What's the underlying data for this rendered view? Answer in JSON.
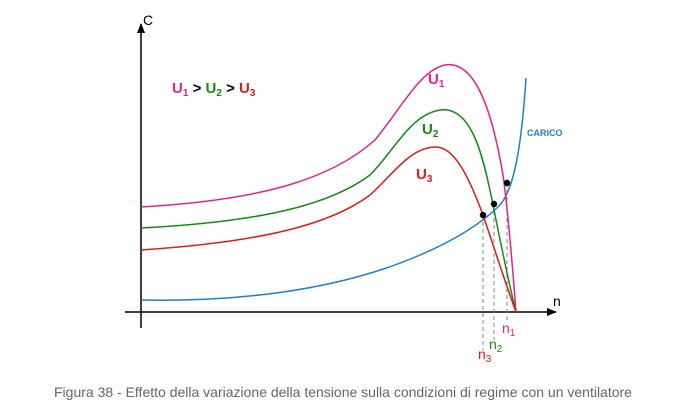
{
  "colors": {
    "u1": "#e8208a",
    "u2": "#138a13",
    "u3": "#e31818",
    "carico": "#1a7fd8",
    "n1": "#e8208a",
    "n2": "#138a13",
    "n3": "#e31818"
  },
  "axes": {
    "y_label": "C",
    "x_label": "n"
  },
  "legend": {
    "u1": "U",
    "u1_sub": "1",
    "gt1": " > ",
    "u2": "U",
    "u2_sub": "2",
    "gt2": " > ",
    "u3": "U",
    "u3_sub": "3"
  },
  "curves": {
    "u1": {
      "label": "U",
      "sub": "1"
    },
    "u2": {
      "label": "U",
      "sub": "2"
    },
    "u3": {
      "label": "U",
      "sub": "3"
    },
    "carico": {
      "label": "CARICO"
    }
  },
  "speeds": {
    "n1": {
      "label": "n",
      "sub": "1"
    },
    "n2": {
      "label": "n",
      "sub": "2"
    },
    "n3": {
      "label": "n",
      "sub": "3"
    }
  },
  "caption": "Figura 38 - Effetto della variazione della tensione sulla condizioni di regime con un ventilatore"
}
